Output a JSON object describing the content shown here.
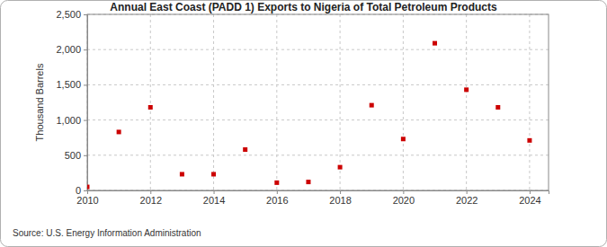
{
  "chart_data": {
    "type": "scatter",
    "title": "Annual East Coast (PADD 1) Exports to Nigeria of Total Petroleum Products",
    "y_label": "Thousand Barrels",
    "source": "Source: U.S. Energy Information Administration",
    "x": [
      2010,
      2011,
      2012,
      2013,
      2014,
      2015,
      2016,
      2017,
      2018,
      2019,
      2020,
      2021,
      2022,
      2023,
      2024
    ],
    "values": [
      50,
      830,
      1180,
      230,
      230,
      580,
      110,
      120,
      330,
      1210,
      730,
      2090,
      1430,
      1180,
      710
    ],
    "color": "#cc0000",
    "marker": "square",
    "grid": true,
    "xlim": [
      2010,
      2024.6
    ],
    "xticks": [
      2010,
      2012,
      2014,
      2016,
      2018,
      2020,
      2022,
      2024
    ],
    "ylim": [
      0,
      2500
    ],
    "yticks": [
      0,
      500,
      {
        "value": 1000,
        "label": "1,000"
      },
      {
        "value": 1500,
        "label": "1,500"
      },
      {
        "value": 2000,
        "label": "2,000"
      },
      {
        "value": 2500,
        "label": "2,500"
      }
    ]
  }
}
